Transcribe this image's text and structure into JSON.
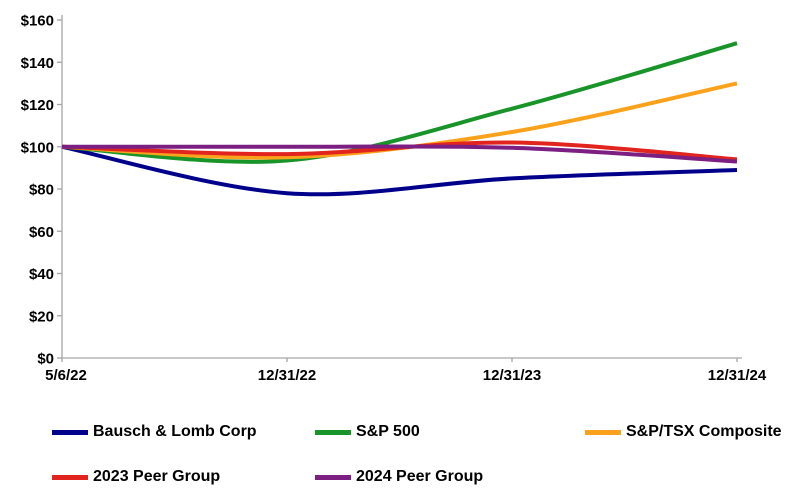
{
  "chart_data": {
    "type": "line",
    "title": "",
    "x_tick_labels": [
      "5/6/22",
      "12/31/22",
      "12/31/23",
      "12/31/24"
    ],
    "y_tick_values": [
      0,
      20,
      40,
      60,
      80,
      100,
      120,
      140,
      160
    ],
    "y_tick_prefix": "$",
    "ylim": [
      0,
      160
    ],
    "grid": false,
    "legend_position": "bottom",
    "axis_color": "#A6A6A6",
    "text_color": "#000000",
    "series": [
      {
        "name": "Bausch & Lomb Corp",
        "color": "#00008B",
        "values": [
          100,
          78,
          85,
          89
        ]
      },
      {
        "name": "S&P 500",
        "color": "#189428",
        "values": [
          100,
          93.5,
          118,
          149
        ]
      },
      {
        "name": "S&P/TSX Composite",
        "color": "#FAA21B",
        "values": [
          100,
          95,
          107,
          130
        ]
      },
      {
        "name": "2023 Peer Group",
        "color": "#E1241E",
        "values": [
          100,
          96.5,
          102,
          94
        ]
      },
      {
        "name": "2024 Peer Group",
        "color": "#7B2082",
        "values": [
          100,
          100,
          99.5,
          93
        ]
      }
    ]
  }
}
